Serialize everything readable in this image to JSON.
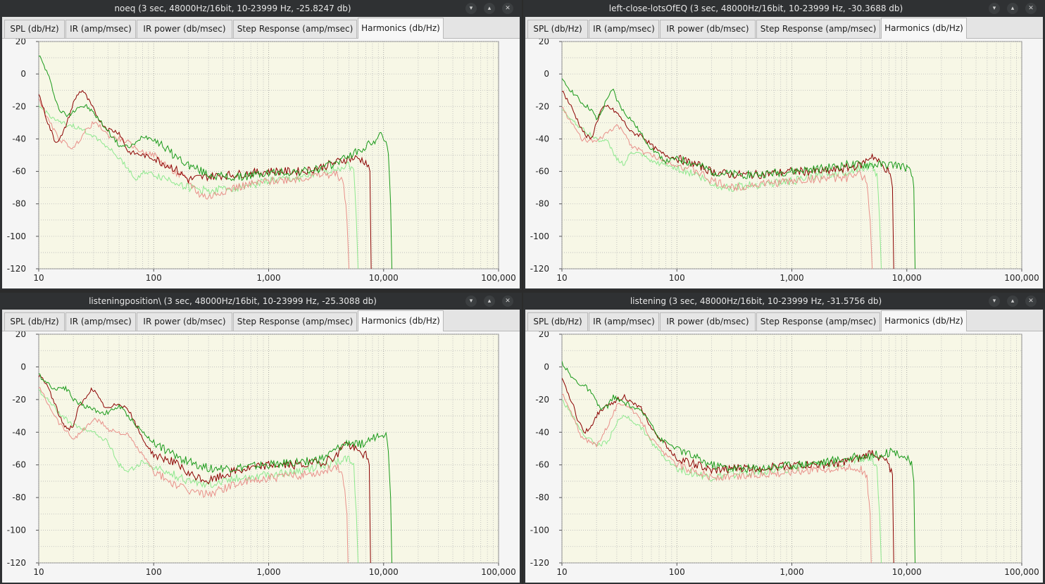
{
  "tab_labels": [
    "SPL (db/Hz)",
    "IR (amp/msec)",
    "IR power (db/msec)",
    "Step Response (amp/msec)",
    "Harmonics (db/Hz)"
  ],
  "active_tab": "Harmonics (db/Hz)",
  "window_buttons": [
    "▾",
    "▴",
    "✕"
  ],
  "colors": {
    "fundamental": "#1a9a1a",
    "second": "#8b0000",
    "third": "#e8908a",
    "fourth": "#8ee88e",
    "plot_bg": "#f7f7e6",
    "grid": "#b8b8b8"
  },
  "windows": [
    {
      "title": "noeq (3 sec, 48000Hz/16bit, 10-23999 Hz, -25.8247 db)"
    },
    {
      "title": "left-close-lotsOfEQ (3 sec, 48000Hz/16bit, 10-23999 Hz, -30.3688 db)"
    },
    {
      "title": "listeningposition\\ (3 sec, 48000Hz/16bit, 10-23999 Hz, -25.3088 db)"
    },
    {
      "title": "listening (3 sec, 48000Hz/16bit, 10-23999 Hz, -31.5756 db)"
    }
  ],
  "chart_data": [
    {
      "type": "line",
      "xscale": "log",
      "xlim": [
        10,
        100000
      ],
      "ylim": [
        -120,
        20
      ],
      "grid": true,
      "x_ticks": [
        "10",
        "100",
        "1,000",
        "10,000",
        "100,000"
      ],
      "y_ticks": [
        "20",
        "0",
        "-20",
        "-40",
        "-60",
        "-80",
        "-100",
        "-120"
      ],
      "series": [
        {
          "color": "#1a9a1a",
          "x": [
            10,
            12,
            15,
            18,
            22,
            26,
            30,
            35,
            40,
            50,
            60,
            70,
            80,
            100,
            120,
            150,
            200,
            300,
            500,
            1000,
            2000,
            3000,
            4000,
            5000,
            6000,
            8000,
            9500,
            10500,
            11000,
            11500,
            11800
          ],
          "y": [
            12,
            0,
            -22,
            -26,
            -20,
            -20,
            -24,
            -30,
            -35,
            -44,
            -45,
            -43,
            -38,
            -40,
            -44,
            -50,
            -56,
            -62,
            -64,
            -61,
            -60,
            -58,
            -54,
            -50,
            -48,
            -42,
            -38,
            -40,
            -50,
            -80,
            -120
          ]
        },
        {
          "color": "#8b0000",
          "x": [
            10,
            12,
            14,
            16,
            18,
            20,
            22,
            24,
            26,
            30,
            35,
            40,
            50,
            60,
            80,
            100,
            150,
            200,
            300,
            500,
            1000,
            2000,
            3000,
            4000,
            5000,
            6000,
            7000,
            7600,
            7800
          ],
          "y": [
            -12,
            -30,
            -42,
            -38,
            -28,
            -18,
            -12,
            -10,
            -14,
            -22,
            -30,
            -34,
            -36,
            -48,
            -50,
            -52,
            -58,
            -65,
            -63,
            -62,
            -60,
            -60,
            -57,
            -54,
            -52,
            -52,
            -54,
            -60,
            -120
          ]
        },
        {
          "color": "#e8908a",
          "x": [
            10,
            12,
            15,
            20,
            25,
            30,
            35,
            40,
            50,
            60,
            70,
            80,
            100,
            150,
            200,
            250,
            300,
            400,
            500,
            1000,
            2000,
            3000,
            4000,
            4500,
            4800,
            5000
          ],
          "y": [
            -15,
            -28,
            -40,
            -46,
            -36,
            -30,
            -33,
            -38,
            -40,
            -42,
            -46,
            -48,
            -50,
            -60,
            -66,
            -74,
            -76,
            -72,
            -70,
            -66,
            -64,
            -62,
            -62,
            -68,
            -90,
            -120
          ]
        },
        {
          "color": "#8ee88e",
          "x": [
            10,
            15,
            20,
            30,
            40,
            50,
            60,
            70,
            80,
            100,
            150,
            200,
            300,
            500,
            1000,
            2000,
            3000,
            4000,
            5000,
            5500,
            5800,
            6000
          ],
          "y": [
            -20,
            -30,
            -32,
            -38,
            -45,
            -52,
            -58,
            -66,
            -60,
            -62,
            -66,
            -70,
            -72,
            -70,
            -66,
            -64,
            -60,
            -58,
            -56,
            -60,
            -90,
            -120
          ]
        }
      ]
    },
    {
      "type": "line",
      "xscale": "log",
      "xlim": [
        10,
        100000
      ],
      "ylim": [
        -120,
        20
      ],
      "grid": true,
      "x_ticks": [
        "10",
        "100",
        "1,000",
        "10,000",
        "100,000"
      ],
      "y_ticks": [
        "20",
        "0",
        "-20",
        "-40",
        "-60",
        "-80",
        "-100",
        "-120"
      ],
      "series": [
        {
          "color": "#1a9a1a",
          "x": [
            10,
            12,
            15,
            18,
            20,
            22,
            25,
            28,
            30,
            35,
            40,
            50,
            60,
            70,
            80,
            100,
            150,
            200,
            300,
            500,
            1000,
            2000,
            3000,
            5000,
            8000,
            10000,
            11000,
            11500,
            11800
          ],
          "y": [
            -4,
            -10,
            -18,
            -22,
            -28,
            -24,
            -14,
            -10,
            -16,
            -24,
            -28,
            -38,
            -46,
            -50,
            -54,
            -52,
            -56,
            -60,
            -62,
            -62,
            -60,
            -58,
            -56,
            -56,
            -56,
            -58,
            -62,
            -70,
            -120
          ]
        },
        {
          "color": "#8b0000",
          "x": [
            10,
            12,
            14,
            16,
            18,
            20,
            22,
            25,
            30,
            35,
            40,
            50,
            60,
            70,
            80,
            100,
            150,
            200,
            300,
            500,
            1000,
            2000,
            3000,
            4000,
            5000,
            6000,
            7000,
            7500,
            7700
          ],
          "y": [
            -10,
            -20,
            -30,
            -38,
            -40,
            -30,
            -22,
            -20,
            -24,
            -30,
            -36,
            -38,
            -44,
            -48,
            -50,
            -52,
            -56,
            -60,
            -62,
            -62,
            -60,
            -60,
            -58,
            -56,
            -50,
            -56,
            -60,
            -70,
            -120
          ]
        },
        {
          "color": "#e8908a",
          "x": [
            10,
            12,
            15,
            20,
            25,
            30,
            35,
            40,
            50,
            60,
            80,
            100,
            150,
            200,
            300,
            500,
            1000,
            2000,
            3000,
            4000,
            4500,
            4800,
            5000
          ],
          "y": [
            -20,
            -30,
            -40,
            -42,
            -36,
            -32,
            -36,
            -44,
            -48,
            -50,
            -54,
            -56,
            -60,
            -66,
            -70,
            -68,
            -66,
            -64,
            -64,
            -62,
            -66,
            -90,
            -120
          ]
        },
        {
          "color": "#8ee88e",
          "x": [
            10,
            15,
            20,
            25,
            30,
            35,
            40,
            50,
            60,
            80,
            100,
            150,
            200,
            300,
            500,
            1000,
            2000,
            3000,
            4000,
            5000,
            5500,
            5800,
            6000
          ],
          "y": [
            -22,
            -34,
            -40,
            -42,
            -52,
            -56,
            -48,
            -50,
            -54,
            -56,
            -58,
            -62,
            -68,
            -70,
            -68,
            -66,
            -62,
            -60,
            -58,
            -56,
            -62,
            -90,
            -120
          ]
        }
      ]
    },
    {
      "type": "line",
      "xscale": "log",
      "xlim": [
        10,
        100000
      ],
      "ylim": [
        -120,
        20
      ],
      "grid": true,
      "x_ticks": [
        "10",
        "100",
        "1,000",
        "10,000",
        "100,000"
      ],
      "y_ticks": [
        "20",
        "0",
        "-20",
        "-40",
        "-60",
        "-80",
        "-100",
        "-120"
      ],
      "series": [
        {
          "color": "#1a9a1a",
          "x": [
            10,
            12,
            14,
            16,
            18,
            20,
            25,
            30,
            35,
            40,
            50,
            60,
            80,
            100,
            150,
            200,
            300,
            500,
            1000,
            2000,
            3000,
            4000,
            5000,
            6000,
            8000,
            9500,
            10500,
            11000,
            11500,
            11800
          ],
          "y": [
            -5,
            -10,
            -14,
            -12,
            -14,
            -20,
            -24,
            -26,
            -28,
            -28,
            -24,
            -30,
            -40,
            -46,
            -54,
            -58,
            -62,
            -62,
            -60,
            -58,
            -56,
            -50,
            -46,
            -48,
            -44,
            -40,
            -42,
            -50,
            -80,
            -120
          ]
        },
        {
          "color": "#8b0000",
          "x": [
            10,
            12,
            14,
            16,
            18,
            20,
            22,
            25,
            28,
            30,
            35,
            40,
            50,
            60,
            80,
            100,
            150,
            200,
            300,
            500,
            1000,
            2000,
            3000,
            4000,
            4500,
            5000,
            6000,
            7000,
            7500,
            7700
          ],
          "y": [
            -5,
            -12,
            -24,
            -34,
            -38,
            -36,
            -26,
            -20,
            -14,
            -14,
            -22,
            -26,
            -22,
            -26,
            -44,
            -54,
            -58,
            -66,
            -70,
            -64,
            -60,
            -60,
            -58,
            -54,
            -46,
            -48,
            -52,
            -54,
            -60,
            -120
          ]
        },
        {
          "color": "#e8908a",
          "x": [
            10,
            12,
            15,
            20,
            25,
            30,
            35,
            40,
            50,
            60,
            80,
            100,
            150,
            200,
            300,
            500,
            1000,
            2000,
            3000,
            4000,
            4500,
            4800,
            4900
          ],
          "y": [
            -12,
            -22,
            -34,
            -44,
            -38,
            -32,
            -34,
            -38,
            -40,
            -42,
            -54,
            -64,
            -72,
            -76,
            -78,
            -72,
            -68,
            -66,
            -64,
            -60,
            -70,
            -90,
            -120
          ]
        },
        {
          "color": "#8ee88e",
          "x": [
            10,
            15,
            20,
            25,
            30,
            40,
            50,
            60,
            80,
            100,
            150,
            200,
            300,
            500,
            1000,
            2000,
            3000,
            4000,
            5000,
            5500,
            5800,
            6000
          ],
          "y": [
            -14,
            -28,
            -36,
            -38,
            -40,
            -46,
            -60,
            -64,
            -58,
            -62,
            -66,
            -70,
            -72,
            -68,
            -66,
            -64,
            -60,
            -58,
            -56,
            -60,
            -90,
            -120
          ]
        }
      ]
    },
    {
      "type": "line",
      "xscale": "log",
      "xlim": [
        10,
        100000
      ],
      "ylim": [
        -120,
        20
      ],
      "grid": true,
      "x_ticks": [
        "10",
        "100",
        "1,000",
        "10,000",
        "100,000"
      ],
      "y_ticks": [
        "20",
        "0",
        "-20",
        "-40",
        "-60",
        "-80",
        "-100",
        "-120"
      ],
      "series": [
        {
          "color": "#1a9a1a",
          "x": [
            10,
            12,
            14,
            16,
            18,
            20,
            22,
            25,
            28,
            30,
            35,
            40,
            50,
            60,
            70,
            80,
            100,
            150,
            200,
            300,
            500,
            1000,
            2000,
            3000,
            5000,
            8000,
            10000,
            11000,
            11500,
            11800
          ],
          "y": [
            3,
            -6,
            -10,
            -12,
            -16,
            -22,
            -26,
            -24,
            -18,
            -20,
            -22,
            -24,
            -28,
            -34,
            -44,
            -46,
            -50,
            -56,
            -60,
            -62,
            -62,
            -60,
            -58,
            -56,
            -54,
            -52,
            -56,
            -60,
            -70,
            -120
          ]
        },
        {
          "color": "#8b0000",
          "x": [
            10,
            12,
            14,
            16,
            18,
            20,
            22,
            25,
            30,
            35,
            40,
            50,
            60,
            80,
            100,
            150,
            200,
            300,
            500,
            1000,
            2000,
            3000,
            4000,
            5000,
            6000,
            7000,
            7500,
            7700
          ],
          "y": [
            -8,
            -20,
            -34,
            -40,
            -36,
            -30,
            -26,
            -24,
            -20,
            -18,
            -22,
            -26,
            -38,
            -48,
            -56,
            -60,
            -64,
            -62,
            -62,
            -60,
            -60,
            -58,
            -56,
            -52,
            -56,
            -60,
            -66,
            -120
          ]
        },
        {
          "color": "#e8908a",
          "x": [
            10,
            12,
            15,
            20,
            25,
            30,
            35,
            40,
            50,
            60,
            80,
            100,
            150,
            200,
            300,
            500,
            1000,
            2000,
            3000,
            4000,
            4500,
            4800,
            4900
          ],
          "y": [
            -16,
            -28,
            -44,
            -48,
            -36,
            -24,
            -22,
            -26,
            -34,
            -44,
            -54,
            -60,
            -64,
            -68,
            -68,
            -66,
            -64,
            -62,
            -62,
            -62,
            -68,
            -90,
            -120
          ]
        },
        {
          "color": "#8ee88e",
          "x": [
            10,
            15,
            20,
            25,
            30,
            35,
            40,
            50,
            60,
            80,
            100,
            150,
            200,
            300,
            500,
            1000,
            2000,
            3000,
            4000,
            5000,
            5500,
            5800,
            6000
          ],
          "y": [
            -20,
            -40,
            -48,
            -46,
            -34,
            -30,
            -32,
            -38,
            -46,
            -56,
            -62,
            -66,
            -68,
            -66,
            -64,
            -62,
            -60,
            -58,
            -56,
            -56,
            -62,
            -90,
            -120
          ]
        }
      ]
    }
  ]
}
